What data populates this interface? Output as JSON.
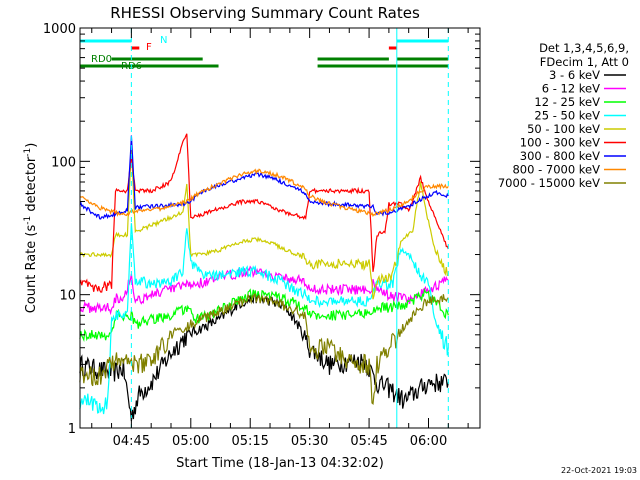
{
  "chart_data": {
    "type": "line",
    "title": "RHESSI Observing Summary Count Rates",
    "xlabel": "Start Time (18-Jan-13 04:32:02)",
    "ylabel_main": "Count Rate (s",
    "ylabel_exp1": "-1",
    "ylabel_mid": " detector",
    "ylabel_exp2": "-1",
    "ylabel_end": ")",
    "yscale": "log",
    "ylim": [
      1,
      1000
    ],
    "xlim": [
      "04:32:02",
      "06:13:00"
    ],
    "y_ticks": [
      {
        "value": 1,
        "label": "1"
      },
      {
        "value": 10,
        "label": "10"
      },
      {
        "value": 100,
        "label": "100"
      },
      {
        "value": 1000,
        "label": "1000"
      }
    ],
    "x_ticks": [
      {
        "value": 765,
        "label": "04:45"
      },
      {
        "value": 780,
        "label": "05:00"
      },
      {
        "value": 795,
        "label": "05:15"
      },
      {
        "value": 810,
        "label": "05:30"
      },
      {
        "value": 825,
        "label": "05:45"
      },
      {
        "value": 840,
        "label": "06:00"
      }
    ],
    "legend_header": [
      "Det 1,3,4,5,6,9,",
      "FDecim 1, Att 0"
    ],
    "legend_placement": "right",
    "series": [
      {
        "name": "3 - 6 keV",
        "color": "#000000",
        "points": [
          [
            752,
            3
          ],
          [
            760,
            2.6
          ],
          [
            763,
            2.8
          ],
          [
            765,
            1.2
          ],
          [
            766,
            1.5
          ],
          [
            767,
            1.8
          ],
          [
            770,
            2.2
          ],
          [
            773,
            3
          ],
          [
            776,
            4
          ],
          [
            779,
            5
          ],
          [
            782,
            5.5
          ],
          [
            787,
            6.5
          ],
          [
            792,
            8.5
          ],
          [
            796,
            9.5
          ],
          [
            800,
            9
          ],
          [
            804,
            8
          ],
          [
            807,
            6
          ],
          [
            810,
            4
          ],
          [
            815,
            3
          ],
          [
            820,
            3.2
          ],
          [
            824,
            3.2
          ],
          [
            827,
            2.2
          ],
          [
            830,
            2
          ],
          [
            834,
            1.6
          ],
          [
            836,
            1.8
          ],
          [
            840,
            2.2
          ],
          [
            845,
            2.2
          ]
        ]
      },
      {
        "name": "6 - 12 keV",
        "color": "#ff00ff",
        "points": [
          [
            752,
            8
          ],
          [
            760,
            8
          ],
          [
            761,
            9.5
          ],
          [
            763,
            9.5
          ],
          [
            765,
            14
          ],
          [
            766,
            9
          ],
          [
            770,
            10
          ],
          [
            775,
            11
          ],
          [
            780,
            12
          ],
          [
            784,
            12.5
          ],
          [
            788,
            13.5
          ],
          [
            793,
            15
          ],
          [
            797,
            15
          ],
          [
            801,
            14
          ],
          [
            805,
            13
          ],
          [
            808,
            13
          ],
          [
            810,
            11
          ],
          [
            815,
            11
          ],
          [
            820,
            11
          ],
          [
            825,
            11
          ],
          [
            826,
            12
          ],
          [
            827,
            11
          ],
          [
            830,
            10
          ],
          [
            836,
            9
          ],
          [
            840,
            11
          ],
          [
            845,
            13
          ]
        ]
      },
      {
        "name": "12 - 25 keV",
        "color": "#00ff00",
        "points": [
          [
            752,
            5
          ],
          [
            760,
            5
          ],
          [
            761,
            7
          ],
          [
            765,
            7
          ],
          [
            766,
            6
          ],
          [
            770,
            6.5
          ],
          [
            775,
            7
          ],
          [
            779,
            8
          ],
          [
            781,
            6.5
          ],
          [
            785,
            7
          ],
          [
            790,
            8.5
          ],
          [
            795,
            10
          ],
          [
            800,
            10
          ],
          [
            805,
            9
          ],
          [
            809,
            8
          ],
          [
            810,
            7
          ],
          [
            815,
            7
          ],
          [
            820,
            7
          ],
          [
            826,
            7.5
          ],
          [
            827,
            8
          ],
          [
            830,
            8
          ],
          [
            835,
            8.5
          ],
          [
            838,
            10
          ],
          [
            840,
            10
          ],
          [
            845,
            7
          ]
        ]
      },
      {
        "name": "25 - 50 keV",
        "color": "#00ffff",
        "points": [
          [
            752,
            1.6
          ],
          [
            759,
            1.5
          ],
          [
            760,
            7
          ],
          [
            764,
            7
          ],
          [
            765,
            35
          ],
          [
            766,
            13
          ],
          [
            770,
            12
          ],
          [
            775,
            12.5
          ],
          [
            778,
            15
          ],
          [
            779,
            32
          ],
          [
            780,
            17
          ],
          [
            783,
            14
          ],
          [
            788,
            14
          ],
          [
            793,
            15
          ],
          [
            797,
            15
          ],
          [
            802,
            13
          ],
          [
            806,
            11
          ],
          [
            809,
            10
          ],
          [
            810,
            9
          ],
          [
            815,
            9
          ],
          [
            820,
            9
          ],
          [
            825,
            9
          ],
          [
            826,
            10
          ],
          [
            827,
            12
          ],
          [
            831,
            12
          ],
          [
            833,
            22
          ],
          [
            835,
            20
          ],
          [
            838,
            14
          ],
          [
            840,
            12
          ],
          [
            842,
            6
          ],
          [
            845,
            4
          ]
        ]
      },
      {
        "name": "50 - 100 keV",
        "color": "#cccc00",
        "points": [
          [
            752,
            20
          ],
          [
            760,
            20
          ],
          [
            761,
            28
          ],
          [
            764,
            28
          ],
          [
            765,
            130
          ],
          [
            766,
            30
          ],
          [
            770,
            33
          ],
          [
            775,
            38
          ],
          [
            778,
            42
          ],
          [
            779,
            68
          ],
          [
            780,
            20
          ],
          [
            783,
            20
          ],
          [
            788,
            22
          ],
          [
            793,
            25
          ],
          [
            797,
            26
          ],
          [
            801,
            24
          ],
          [
            805,
            21
          ],
          [
            809,
            19
          ],
          [
            810,
            17
          ],
          [
            815,
            17
          ],
          [
            820,
            17
          ],
          [
            825,
            17
          ],
          [
            826,
            10
          ],
          [
            827,
            13
          ],
          [
            831,
            14
          ],
          [
            833,
            25
          ],
          [
            836,
            30
          ],
          [
            838,
            70
          ],
          [
            840,
            35
          ],
          [
            842,
            20
          ],
          [
            845,
            14
          ]
        ]
      },
      {
        "name": "100 - 300 keV",
        "color": "#ff0000",
        "points": [
          [
            752,
            13
          ],
          [
            756,
            11
          ],
          [
            760,
            12
          ],
          [
            761,
            60
          ],
          [
            764,
            60
          ],
          [
            765,
            110
          ],
          [
            766,
            60
          ],
          [
            770,
            60
          ],
          [
            775,
            70
          ],
          [
            778,
            140
          ],
          [
            779,
            160
          ],
          [
            780,
            38
          ],
          [
            783,
            40
          ],
          [
            788,
            45
          ],
          [
            793,
            50
          ],
          [
            797,
            50
          ],
          [
            801,
            45
          ],
          [
            805,
            40
          ],
          [
            809,
            38
          ],
          [
            810,
            60
          ],
          [
            815,
            60
          ],
          [
            820,
            60
          ],
          [
            825,
            60
          ],
          [
            826,
            15
          ],
          [
            827,
            28
          ],
          [
            829,
            30
          ],
          [
            830,
            48
          ],
          [
            833,
            48
          ],
          [
            835,
            42
          ],
          [
            838,
            75
          ],
          [
            840,
            50
          ],
          [
            842,
            35
          ],
          [
            845,
            22
          ]
        ]
      },
      {
        "name": "300 - 800 keV",
        "color": "#0000ff",
        "points": [
          [
            752,
            48
          ],
          [
            757,
            38
          ],
          [
            761,
            40
          ],
          [
            764,
            43
          ],
          [
            765,
            160
          ],
          [
            766,
            45
          ],
          [
            770,
            46
          ],
          [
            775,
            47
          ],
          [
            779,
            48
          ],
          [
            783,
            60
          ],
          [
            788,
            68
          ],
          [
            793,
            75
          ],
          [
            797,
            80
          ],
          [
            801,
            75
          ],
          [
            805,
            65
          ],
          [
            809,
            58
          ],
          [
            810,
            50
          ],
          [
            815,
            48
          ],
          [
            820,
            47
          ],
          [
            826,
            46
          ],
          [
            827,
            40
          ],
          [
            831,
            42
          ],
          [
            835,
            46
          ],
          [
            838,
            52
          ],
          [
            840,
            55
          ],
          [
            842,
            58
          ],
          [
            845,
            55
          ]
        ]
      },
      {
        "name": "800 - 7000 keV",
        "color": "#ff8800",
        "points": [
          [
            752,
            55
          ],
          [
            757,
            45
          ],
          [
            761,
            41
          ],
          [
            764,
            40
          ],
          [
            765,
            42
          ],
          [
            770,
            43
          ],
          [
            775,
            46
          ],
          [
            779,
            50
          ],
          [
            783,
            60
          ],
          [
            788,
            70
          ],
          [
            793,
            80
          ],
          [
            797,
            85
          ],
          [
            801,
            80
          ],
          [
            805,
            72
          ],
          [
            809,
            62
          ],
          [
            810,
            55
          ],
          [
            815,
            48
          ],
          [
            820,
            44
          ],
          [
            826,
            40
          ],
          [
            831,
            44
          ],
          [
            835,
            50
          ],
          [
            838,
            60
          ],
          [
            840,
            65
          ],
          [
            845,
            65
          ]
        ]
      },
      {
        "name": "7000 - 15000 keV",
        "color": "#808000",
        "points": [
          [
            752,
            2.5
          ],
          [
            757,
            2.5
          ],
          [
            760,
            3
          ],
          [
            764,
            3.5
          ],
          [
            765,
            3
          ],
          [
            770,
            3.2
          ],
          [
            775,
            5
          ],
          [
            780,
            6
          ],
          [
            785,
            7
          ],
          [
            790,
            8
          ],
          [
            795,
            9.5
          ],
          [
            800,
            9
          ],
          [
            805,
            8
          ],
          [
            809,
            7
          ],
          [
            810,
            4
          ],
          [
            815,
            4
          ],
          [
            820,
            3.2
          ],
          [
            825,
            3
          ],
          [
            826,
            1.5
          ],
          [
            827,
            3
          ],
          [
            830,
            4
          ],
          [
            834,
            6
          ],
          [
            838,
            8
          ],
          [
            840,
            9
          ],
          [
            845,
            9.5
          ]
        ]
      }
    ],
    "flag_bars": [
      {
        "label": "N",
        "color": "#00ffff",
        "ranges": [
          [
            752.0,
            765.0
          ],
          [
            832.0,
            845.0
          ]
        ]
      },
      {
        "label": "F",
        "color": "#ff0000",
        "ranges": [
          [
            765.0,
            767.0
          ],
          [
            830.0,
            832.0
          ]
        ]
      },
      {
        "label": "RD0",
        "color": "#008000",
        "ranges": [
          [
            752.0,
            787.0
          ],
          [
            812.0,
            845.0
          ]
        ]
      },
      {
        "label": "RD6",
        "color": "#008000",
        "ranges": [
          [
            760.0,
            783.0
          ],
          [
            812.0,
            830.0
          ],
          [
            832.0,
            845.0
          ]
        ]
      }
    ],
    "vertical_markers": [
      {
        "x": 765.0,
        "color": "#00ffff",
        "style": "dashed"
      },
      {
        "x": 832.0,
        "color": "#00ffff",
        "style": "solid"
      },
      {
        "x": 845.0,
        "color": "#00ffff",
        "style": "dashed"
      }
    ],
    "footer_date": "22-Oct-2021 19:03"
  }
}
